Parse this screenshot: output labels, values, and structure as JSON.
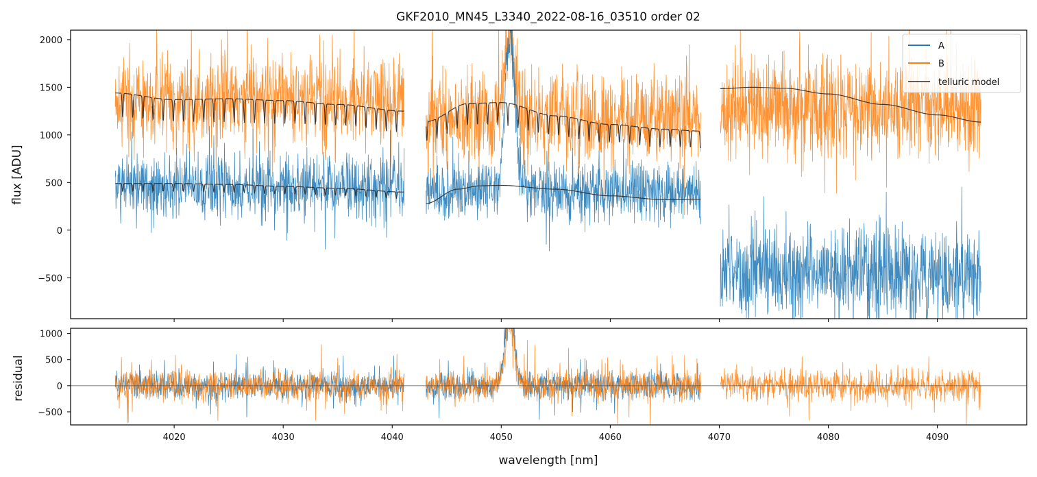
{
  "title": "GKF2010_MN45_L3340_2022-08-16_03510  order 02",
  "colors": {
    "A": "#1f77b4",
    "B": "#ff7f0e",
    "telluric": "#2b2b2b",
    "zero_line": "#555555"
  },
  "chart_data": [
    {
      "type": "line",
      "title": "GKF2010_MN45_L3340_2022-08-16_03510  order 02",
      "xlabel": "",
      "ylabel": "flux [ADU]",
      "xlim": [
        4010.5,
        4098.2
      ],
      "ylim": [
        -930,
        2100
      ],
      "yticks": [
        -500,
        0,
        500,
        1000,
        1500,
        2000
      ],
      "ytick_labels": [
        "−500",
        "0",
        "500",
        "1000",
        "1500",
        "2000"
      ],
      "legend": {
        "placement": "top-right",
        "entries": [
          "A",
          "B",
          "telluric model"
        ]
      },
      "segments": [
        {
          "range": [
            4014.6,
            4041.1
          ],
          "A_level": 460,
          "A_noise": 170,
          "B_level": 1390,
          "B_noise": 230
        },
        {
          "range": [
            4043.1,
            4068.3
          ],
          "A_level": 420,
          "A_noise": 160,
          "B_level": 1200,
          "B_noise": 240,
          "emission_peak": {
            "center": 4050.8,
            "width": 0.45,
            "A_height": 1700,
            "B_height": 900
          }
        },
        {
          "range": [
            4070.1,
            4094.0
          ],
          "A_level": -450,
          "A_noise": 240,
          "B_level": 1280,
          "B_noise": 260
        }
      ],
      "series": [
        {
          "name": "A",
          "description": "observed flux, nod A"
        },
        {
          "name": "B",
          "description": "observed flux, nod B"
        },
        {
          "name": "telluric model",
          "curves": [
            {
              "over": "B",
              "x": [
                4014.6,
                4020,
                4025,
                4030,
                4035,
                4041.1
              ],
              "y": [
                1440,
                1370,
                1380,
                1360,
                1320,
                1250
              ],
              "dips": true
            },
            {
              "over": "A",
              "x": [
                4014.6,
                4020,
                4025,
                4030,
                4035,
                4041.1
              ],
              "y": [
                490,
                490,
                480,
                460,
                440,
                400
              ],
              "dips": true
            },
            {
              "over": "B",
              "x": [
                4043.1,
                4047,
                4050,
                4055,
                4060,
                4065,
                4068.3
              ],
              "y": [
                1140,
                1330,
                1340,
                1200,
                1110,
                1060,
                1040
              ],
              "dips": true
            },
            {
              "over": "A",
              "x": [
                4043.1,
                4046,
                4048,
                4050,
                4055,
                4060,
                4065,
                4068.3
              ],
              "y": [
                280,
                430,
                465,
                470,
                430,
                360,
                320,
                325
              ],
              "dips": false
            },
            {
              "over": "B",
              "x": [
                4070.1,
                4073,
                4076,
                4080,
                4085,
                4090,
                4094
              ],
              "y": [
                1485,
                1500,
                1490,
                1430,
                1320,
                1210,
                1135
              ],
              "dips": false
            }
          ]
        }
      ]
    },
    {
      "type": "line",
      "title": "",
      "xlabel": "wavelength [nm]",
      "ylabel": "residual",
      "xlim": [
        4010.5,
        4098.2
      ],
      "ylim": [
        -750,
        1100
      ],
      "xticks": [
        4020,
        4030,
        4040,
        4050,
        4060,
        4070,
        4080,
        4090
      ],
      "xtick_labels": [
        "4020",
        "4030",
        "4040",
        "4050",
        "4060",
        "4070",
        "4080",
        "4090"
      ],
      "yticks": [
        -500,
        0,
        500,
        1000
      ],
      "ytick_labels": [
        "−500",
        "0",
        "500",
        "1000"
      ],
      "zero_line": 0,
      "series": [
        {
          "name": "A",
          "noise": 220,
          "segments": [
            [
              4014.6,
              4041.1
            ],
            [
              4043.1,
              4068.3
            ]
          ]
        },
        {
          "name": "B",
          "noise": 240,
          "segments": [
            [
              4014.6,
              4041.1
            ],
            [
              4043.1,
              4068.3
            ],
            [
              4070.1,
              4094.0
            ]
          ]
        }
      ]
    }
  ]
}
